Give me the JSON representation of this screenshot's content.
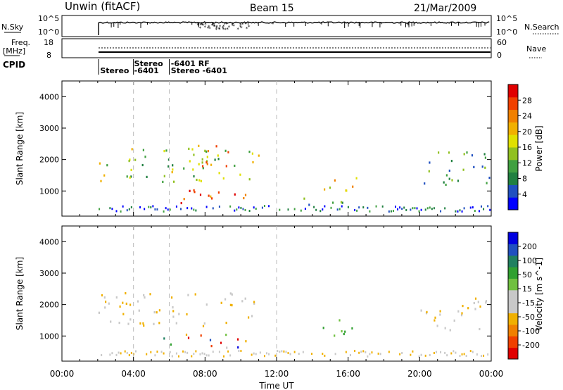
{
  "header": {
    "station": "Unwin (fitACF)",
    "beam": "Beam 15",
    "date": "21/Mar/2009"
  },
  "strip_labels": {
    "nsky": "N.Sky",
    "nsky_ticks": [
      "10^5",
      "10^0"
    ],
    "nsearch": "N.Search",
    "nsearch_ticks": [
      "10^5",
      "10^0"
    ],
    "freq": "Freq.",
    "freq_unit": "[MHz]",
    "freq_ticks": [
      "18",
      "8"
    ],
    "nave": "Nave",
    "nave_ticks": [
      "60",
      "0"
    ],
    "cpid": "CPID"
  },
  "cpid_labels": [
    {
      "text": "Stereo",
      "row": 2,
      "hour": 2.1
    },
    {
      "text": "-6401",
      "row": 2,
      "hour": 4.0
    },
    {
      "text": "Stereo",
      "row": 1,
      "hour": 4.0
    },
    {
      "text": "-6401 RF",
      "row": 1,
      "hour": 6.05
    },
    {
      "text": "Stereo -6401",
      "row": 2,
      "hour": 6.05
    }
  ],
  "chart_data": [
    {
      "type": "heatmap",
      "panel": "power",
      "xlabel": "",
      "ylabel": "Slant Range [km]",
      "ylim": [
        200,
        4500
      ],
      "xlim_hours": [
        0,
        24
      ],
      "yticks": [
        "1000",
        "2000",
        "3000",
        "4000"
      ],
      "colorbar": {
        "label": "Power [dB]",
        "ticks": [
          "28",
          "24",
          "20",
          "16",
          "12",
          "8",
          "4"
        ],
        "colors": [
          "#0000ff",
          "#2050c0",
          "#208040",
          "#40a040",
          "#90c020",
          "#e0e000",
          "#f0b000",
          "#f08000",
          "#f04000",
          "#e00000"
        ]
      },
      "regions": [
        {
          "hour_start": 2.0,
          "hour_end": 11.0,
          "range_start": 1300,
          "range_end": 2400,
          "level": 0.45
        },
        {
          "hour_start": 5.5,
          "hour_end": 10.5,
          "range_start": 650,
          "range_end": 1100,
          "level": 0.9
        },
        {
          "hour_start": 7.0,
          "hour_end": 9.5,
          "range_start": 1800,
          "range_end": 2600,
          "level": 0.75
        },
        {
          "hour_start": 14.5,
          "hour_end": 16.5,
          "range_start": 1000,
          "range_end": 1600,
          "level": 0.6
        },
        {
          "hour_start": 12.5,
          "hour_end": 16.0,
          "range_start": 550,
          "range_end": 800,
          "level": 0.3
        },
        {
          "hour_start": 20.0,
          "hour_end": 24.0,
          "range_start": 1200,
          "range_end": 2300,
          "level": 0.3
        }
      ]
    },
    {
      "type": "heatmap",
      "panel": "velocity",
      "xlabel": "Time UT",
      "ylabel": "Slant Range [km]",
      "ylim": [
        200,
        4500
      ],
      "xlim_hours": [
        0,
        24
      ],
      "xticks": [
        "00:00",
        "04:00",
        "08:00",
        "12:00",
        "16:00",
        "20:00",
        "00:00"
      ],
      "yticks": [
        "1000",
        "2000",
        "3000",
        "4000"
      ],
      "colorbar": {
        "label": "Velocity [m s^-1]",
        "ticks": [
          "200",
          "100",
          "50",
          "15",
          "-15",
          "-50",
          "-100",
          "-200"
        ],
        "colors": [
          "#e00000",
          "#f04000",
          "#f08000",
          "#f0b000",
          "#c8c8c8",
          "#c8c8c8",
          "#70c040",
          "#30a030",
          "#208060",
          "#2050c0",
          "#0000e0"
        ]
      },
      "regions": [
        {
          "hour_start": 2.0,
          "hour_end": 11.0,
          "range_start": 1300,
          "range_end": 2400,
          "level": "low"
        },
        {
          "hour_start": 5.5,
          "hour_end": 10.5,
          "range_start": 650,
          "range_end": 1100,
          "level": "mixed"
        },
        {
          "hour_start": 14.5,
          "hour_end": 16.5,
          "range_start": 1000,
          "range_end": 1600,
          "level": "positive"
        },
        {
          "hour_start": 20.0,
          "hour_end": 24.0,
          "range_start": 1200,
          "range_end": 2300,
          "level": "low"
        }
      ]
    }
  ]
}
